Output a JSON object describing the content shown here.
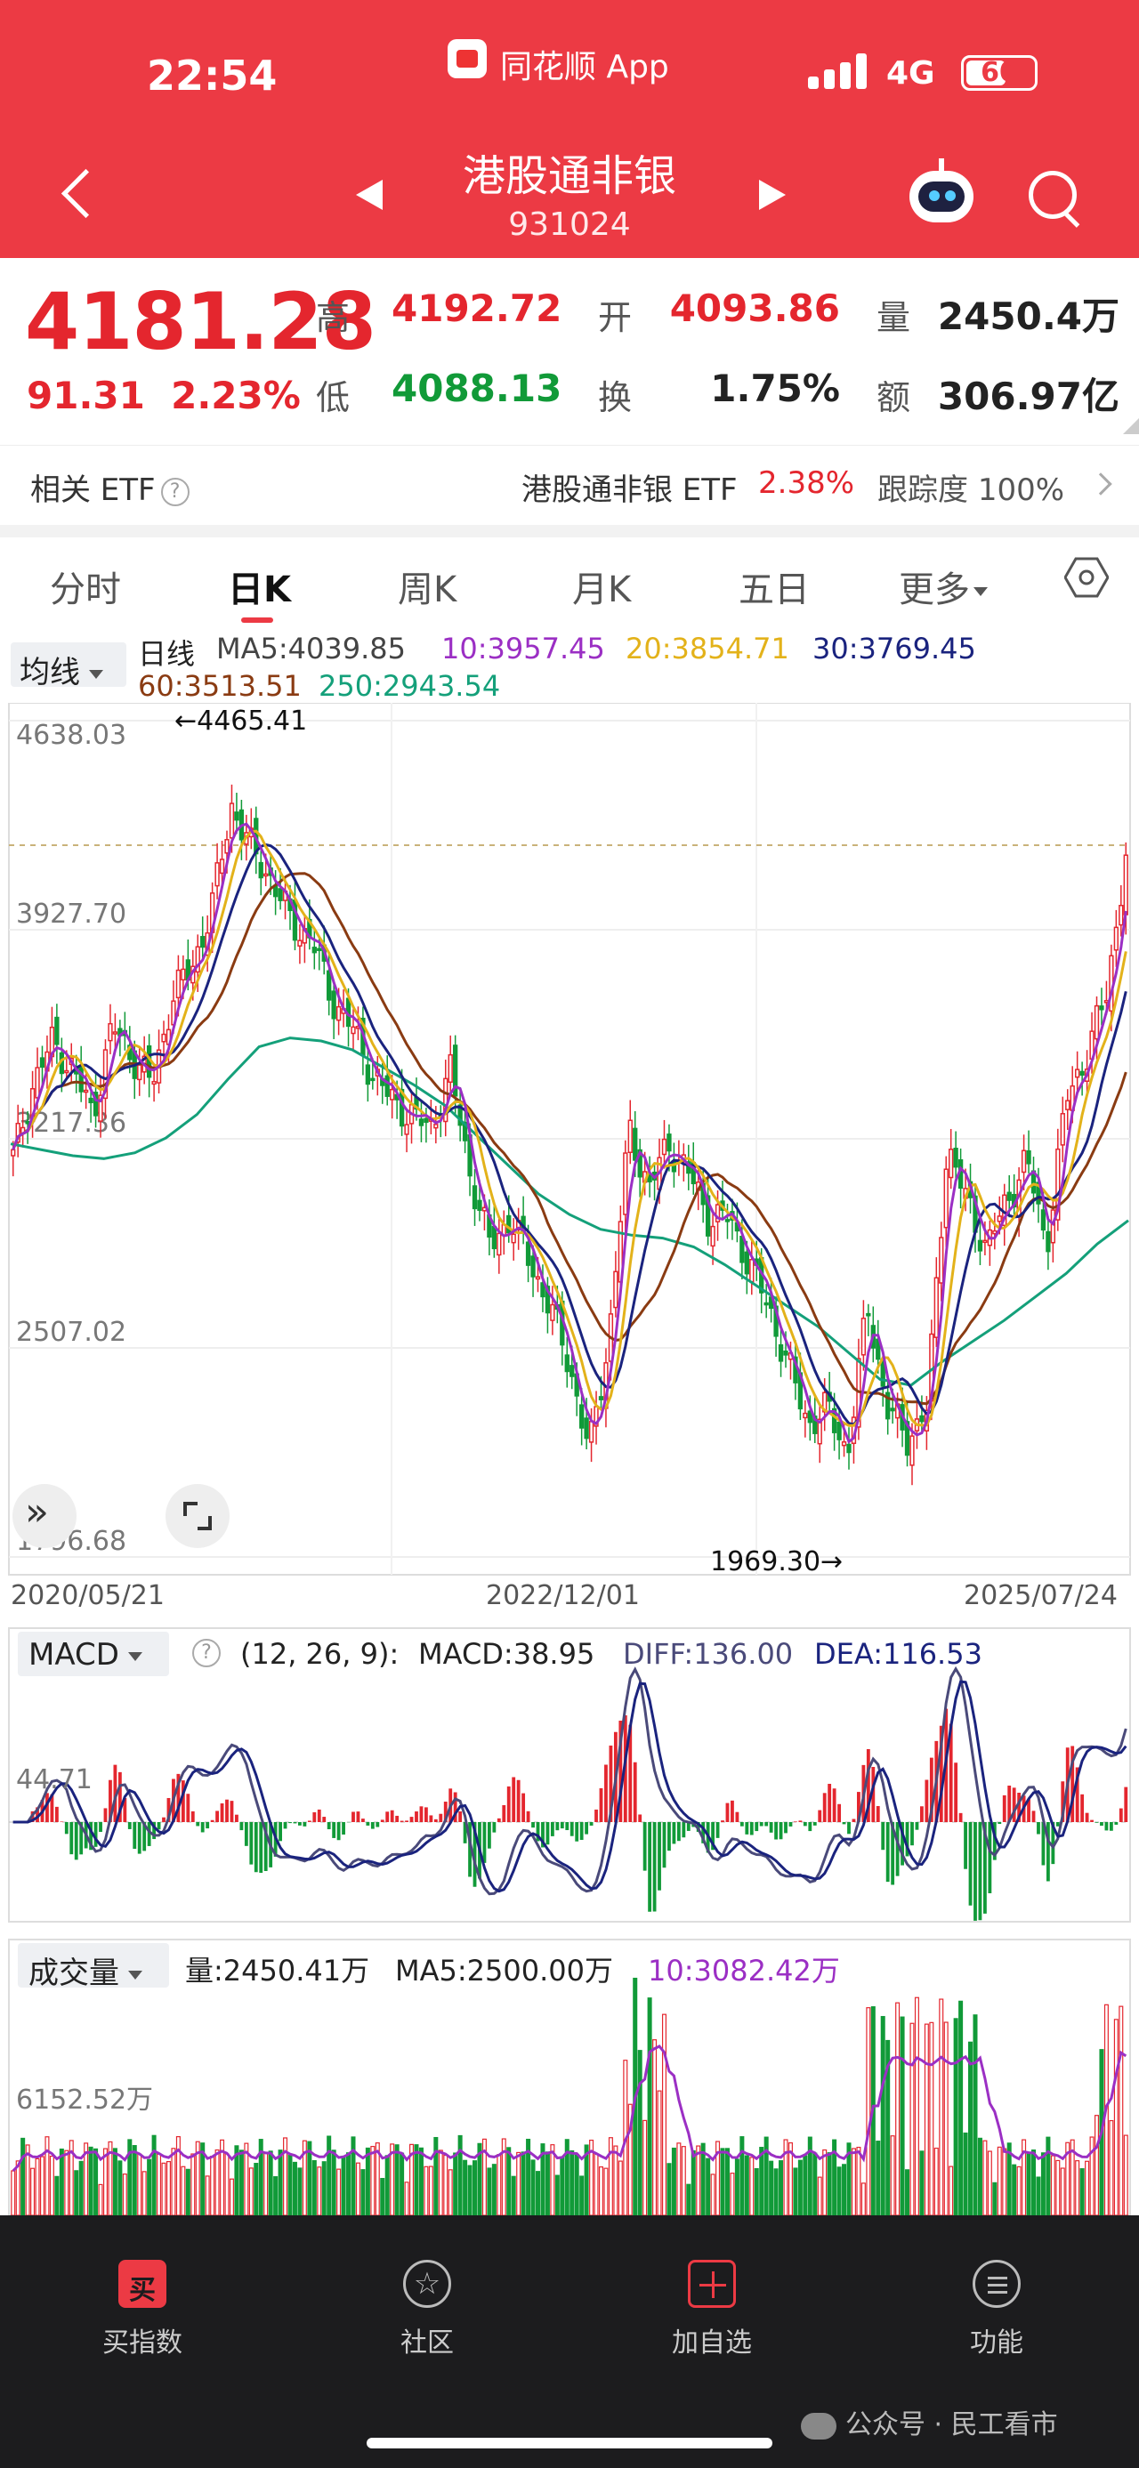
{
  "status": {
    "time": "22:54",
    "app_name": "同花顺 App",
    "network": "4G",
    "battery": "60",
    "battery_level": 0.6
  },
  "header": {
    "title": "港股通非银",
    "code": "931024"
  },
  "quote": {
    "price": "4181.28",
    "change": "91.31",
    "change_pct": "2.23%",
    "high_label": "高",
    "high": "4192.72",
    "low_label": "低",
    "low": "4088.13",
    "open_label": "开",
    "open": "4093.86",
    "turnover_label": "换",
    "turnover": "1.75%",
    "volume_label": "量",
    "volume": "2450.4万",
    "amount_label": "额",
    "amount": "306.97亿"
  },
  "etf": {
    "label": "相关 ETF",
    "help": "?",
    "name": "港股通非银 ETF",
    "change": "2.38%",
    "tracking_label": "跟踪度",
    "tracking": "100%"
  },
  "tabs": [
    {
      "label": "分时"
    },
    {
      "label": "日K"
    },
    {
      "label": "周K"
    },
    {
      "label": "月K"
    },
    {
      "label": "五日"
    },
    {
      "label": "更多"
    }
  ],
  "ma_line": {
    "selector": "均线",
    "kind": "日线",
    "ma5": "MA5:4039.85",
    "ma10": "10:3957.45",
    "ma20": "20:3854.71",
    "ma30": "30:3769.45",
    "ma60": "60:3513.51",
    "ma250": "250:2943.54"
  },
  "colors": {
    "up": "#e4262e",
    "down": "#119a38",
    "ma5": "#444444",
    "ma10": "#9b2fc4",
    "ma20": "#e3b21a",
    "ma30": "#1a237e",
    "ma60": "#8a3b12",
    "ma250": "#14a07a",
    "header": "#ec3a44"
  },
  "chart_data": [
    {
      "type": "line",
      "title": "",
      "y_ticks": [
        "4638.03",
        "3927.70",
        "3217.36",
        "2507.02",
        "1796.68"
      ],
      "ylim": [
        1796.68,
        4638.03
      ],
      "x_ticks": [
        "2020/05/21",
        "2022/12/01",
        "2025/07/24"
      ],
      "annotations": {
        "max": "←4465.41",
        "min": "1969.30→"
      },
      "series_close": [
        3150,
        3400,
        3550,
        3450,
        3300,
        3600,
        3500,
        3400,
        3700,
        3800,
        4000,
        4350,
        4200,
        4100,
        3950,
        3900,
        3700,
        3600,
        3450,
        3350,
        3300,
        3250,
        3450,
        3100,
        2850,
        2950,
        2800,
        2650,
        2450,
        2150,
        2550,
        3250,
        3050,
        3200,
        3100,
        2950,
        2950,
        2800,
        2650,
        2450,
        2250,
        2300,
        2150,
        2650,
        2300,
        2200,
        2300,
        3200,
        3000,
        2850,
        3000,
        3150,
        2850,
        3350,
        3500,
        3700,
        4181
      ],
      "series_ma250": [
        3200,
        3180,
        3160,
        3150,
        3170,
        3220,
        3300,
        3420,
        3530,
        3560,
        3550,
        3520,
        3460,
        3400,
        3330,
        3230,
        3130,
        3030,
        2960,
        2910,
        2890,
        2880,
        2850,
        2790,
        2720,
        2650,
        2580,
        2490,
        2400,
        2380,
        2460,
        2530,
        2600,
        2680,
        2760,
        2860,
        2940
      ]
    },
    {
      "type": "line",
      "title": "",
      "selector": "MACD",
      "params": "(12, 26, 9):",
      "macd": "MACD:38.95",
      "diff": "DIFF:136.00",
      "dea": "DEA:116.53",
      "y_tick": "44.71"
    },
    {
      "type": "bar",
      "title": "",
      "selector": "成交量",
      "vol": "量:2450.41万",
      "ma5": "MA5:2500.00万",
      "ma10": "10:3082.42万",
      "y_tick": "6152.52万"
    }
  ],
  "nav": [
    {
      "label": "买指数"
    },
    {
      "label": "社区"
    },
    {
      "label": "加自选"
    },
    {
      "label": "功能"
    }
  ],
  "watermark": "公众号 · 民工看市"
}
